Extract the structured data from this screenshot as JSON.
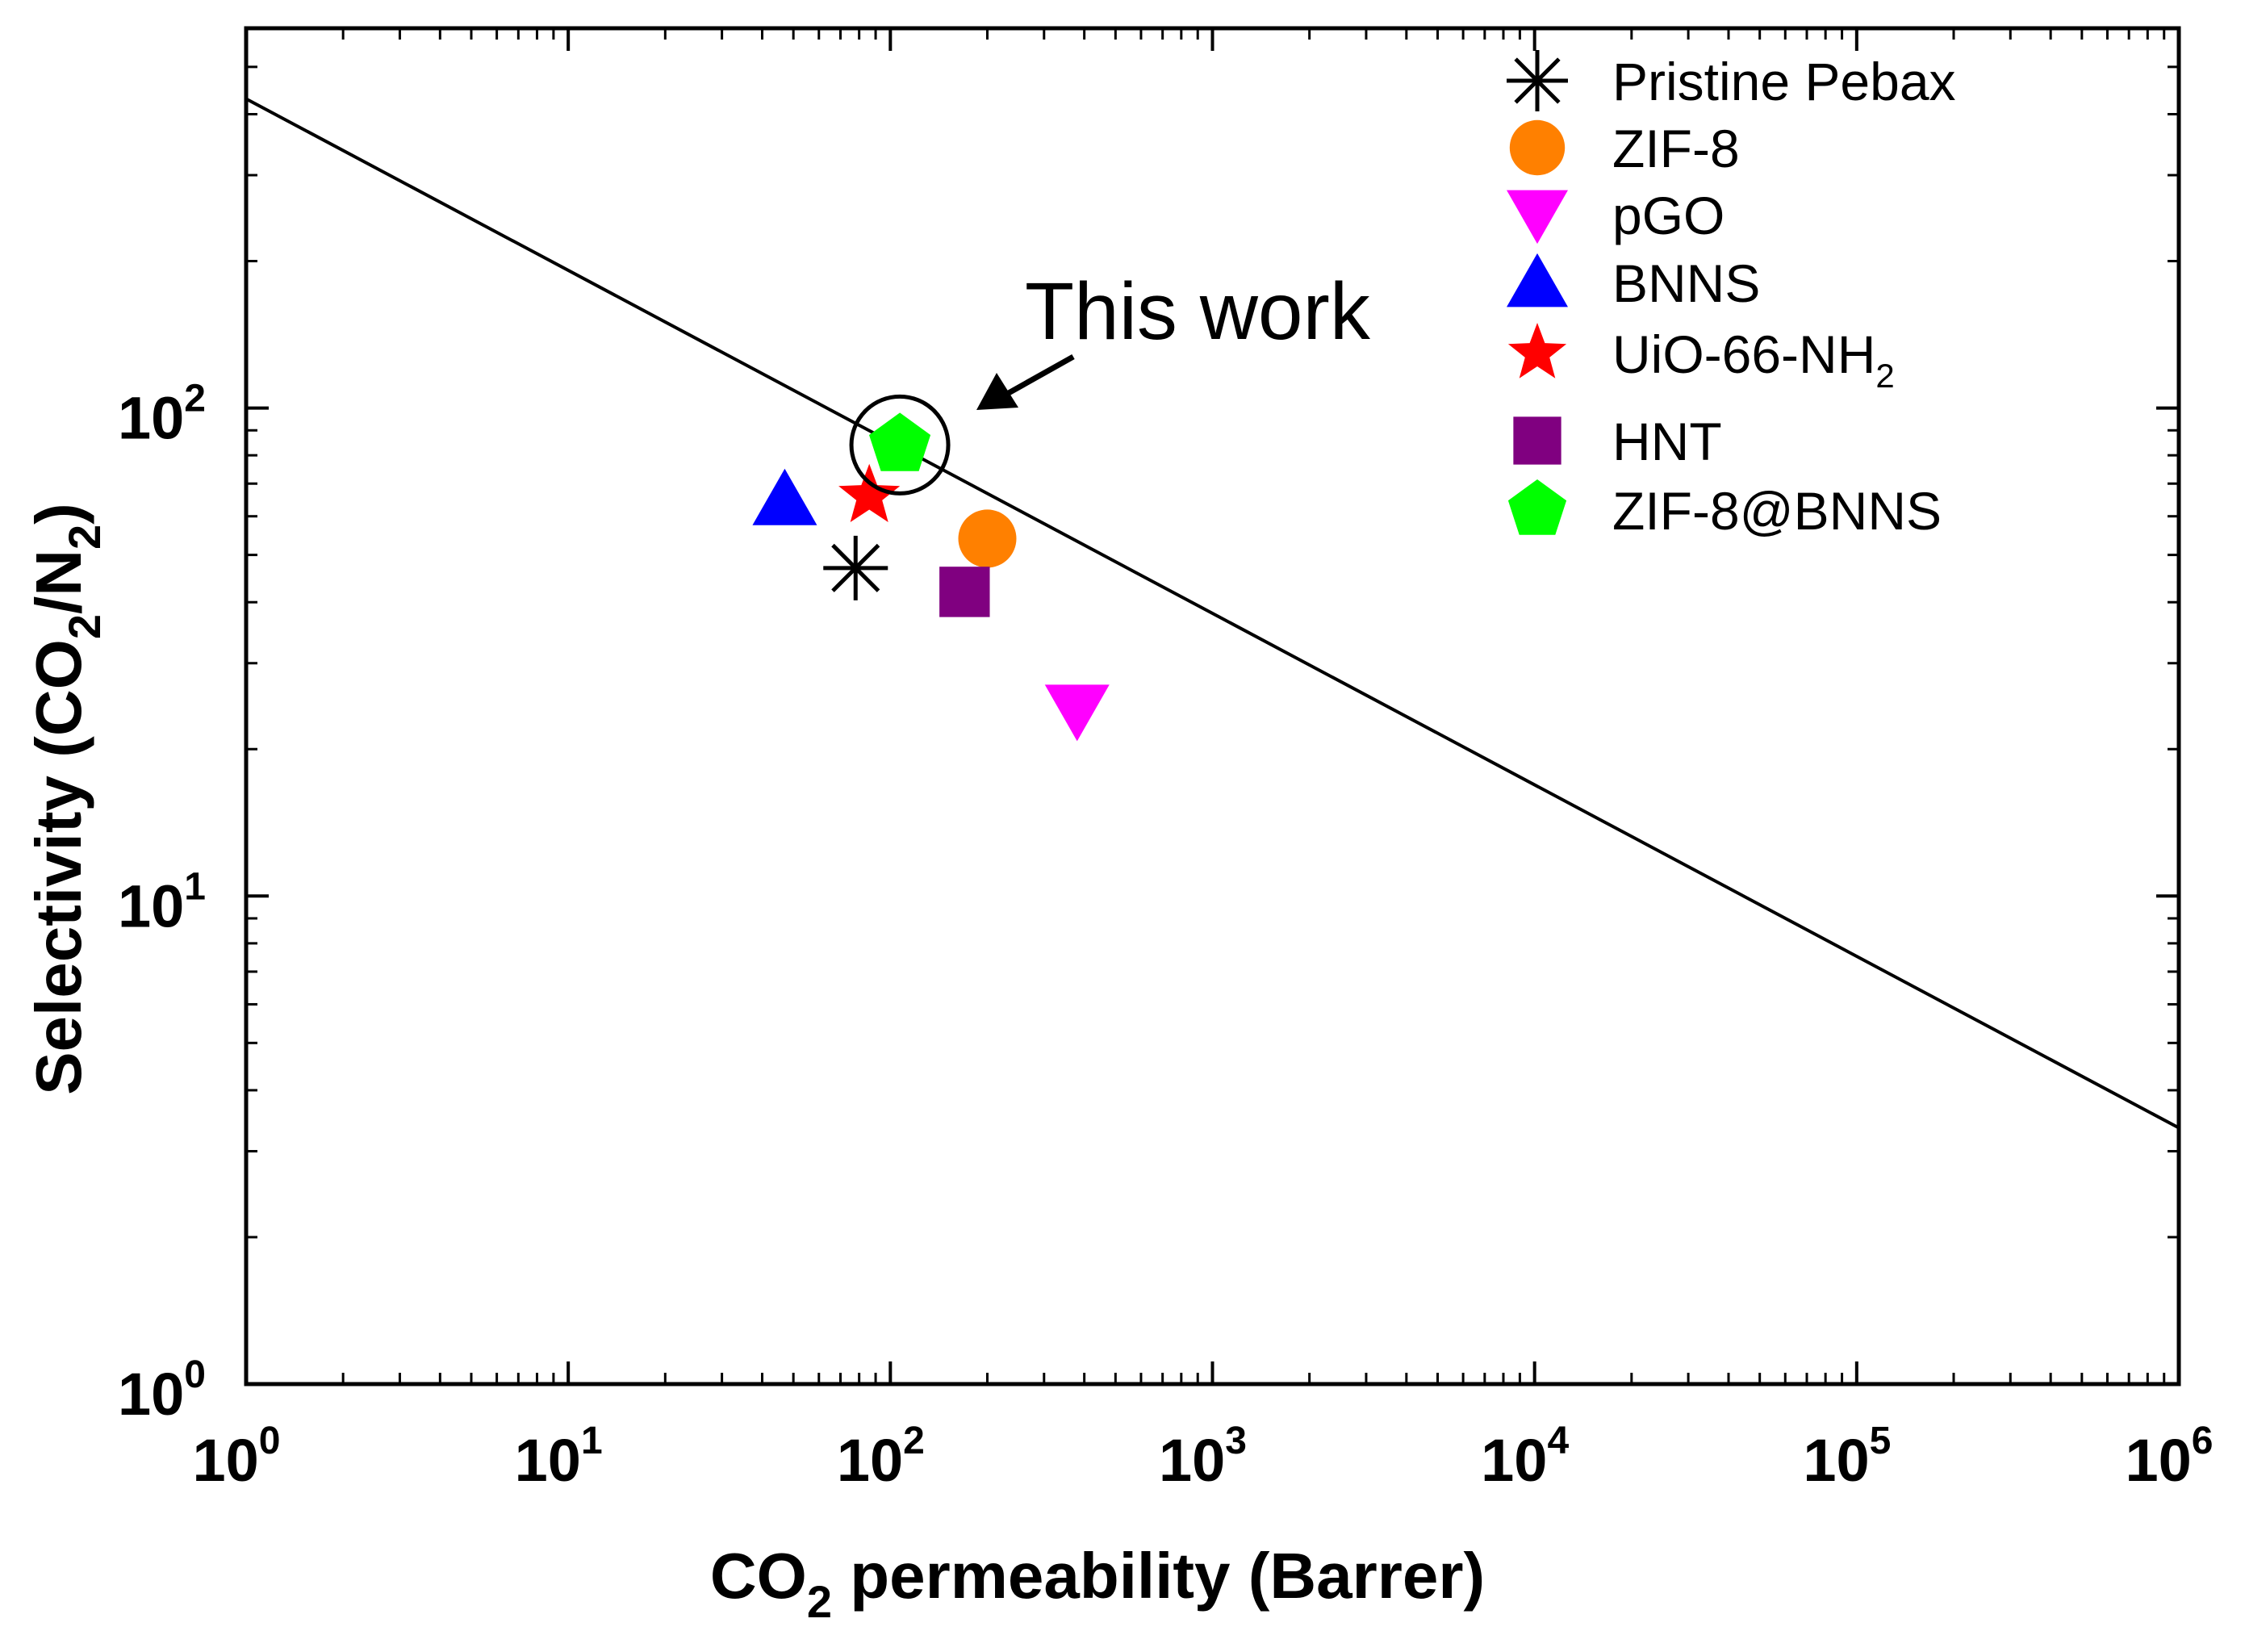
{
  "chart_data": {
    "type": "scatter",
    "x_scale": "log",
    "y_scale": "log",
    "xlim": [
      1,
      1000000
    ],
    "ylim": [
      1,
      600
    ],
    "grid": false,
    "legend_position": "top-right",
    "xlabel": {
      "main": "CO",
      "sub": "2",
      "rest": " permeability (Barrer)"
    },
    "ylabel": {
      "main": "Selectivity (CO",
      "sub1": "2",
      "mid": "/N",
      "sub2": "2",
      "end": ")"
    },
    "x_ticks": [
      {
        "value": 1,
        "base": "10",
        "exp": "0"
      },
      {
        "value": 10,
        "base": "10",
        "exp": "1"
      },
      {
        "value": 100,
        "base": "10",
        "exp": "2"
      },
      {
        "value": 1000,
        "base": "10",
        "exp": "3"
      },
      {
        "value": 10000,
        "base": "10",
        "exp": "4"
      },
      {
        "value": 100000,
        "base": "10",
        "exp": "5"
      },
      {
        "value": 1000000,
        "base": "10",
        "exp": "6"
      }
    ],
    "y_ticks": [
      {
        "value": 1,
        "base": "10",
        "exp": "0"
      },
      {
        "value": 10,
        "base": "10",
        "exp": "1"
      },
      {
        "value": 100,
        "base": "10",
        "exp": "2"
      }
    ],
    "upper_bound_line": {
      "x": [
        1,
        1000000
      ],
      "y": [
        430,
        3.35
      ]
    },
    "series": [
      {
        "name": "Pristine Pebax",
        "marker": "asterisk",
        "color": "#000000",
        "x": 78,
        "y": 47
      },
      {
        "name": "ZIF-8",
        "marker": "circle",
        "color": "#ff8000",
        "x": 200,
        "y": 54
      },
      {
        "name": "pGO",
        "marker": "triangle-down",
        "color": "#ff00ff",
        "x": 380,
        "y": 24
      },
      {
        "name": "BNNS",
        "marker": "triangle-up",
        "color": "#0000ff",
        "x": 47,
        "y": 65
      },
      {
        "name": "UiO-66-NH",
        "name_sub": "2",
        "marker": "star",
        "color": "#ff0000",
        "x": 86,
        "y": 66
      },
      {
        "name": "HNT",
        "marker": "square",
        "color": "#800080",
        "x": 170,
        "y": 42
      },
      {
        "name": "ZIF-8@BNNS",
        "marker": "pentagon",
        "color": "#00ff00",
        "x": 107,
        "y": 84
      }
    ],
    "annotation": {
      "text": "This work"
    }
  }
}
